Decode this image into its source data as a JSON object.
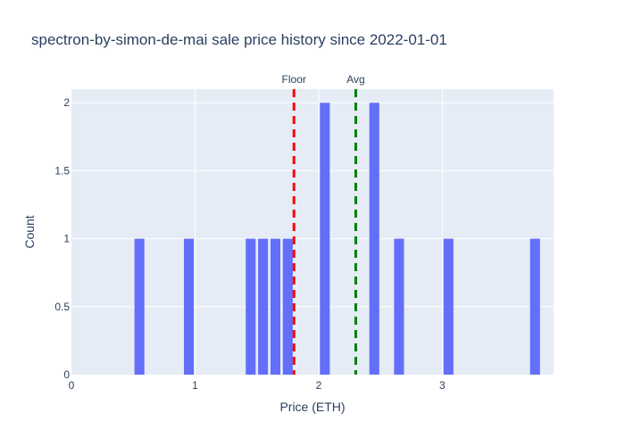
{
  "chart_data": {
    "type": "bar",
    "title": "spectron-by-simon-de-mai sale price history since 2022-01-01",
    "xlabel": "Price (ETH)",
    "ylabel": "Count",
    "xlim": [
      0,
      3.9
    ],
    "ylim": [
      0,
      2.1
    ],
    "bin_width": 0.1,
    "x_ticks": [
      {
        "value": 0,
        "label": "0"
      },
      {
        "value": 1,
        "label": "1"
      },
      {
        "value": 2,
        "label": "2"
      },
      {
        "value": 3,
        "label": "3"
      }
    ],
    "y_ticks": [
      {
        "value": 0,
        "label": "0"
      },
      {
        "value": 0.5,
        "label": "0.5"
      },
      {
        "value": 1,
        "label": "1"
      },
      {
        "value": 1.5,
        "label": "1.5"
      },
      {
        "value": 2,
        "label": "2"
      }
    ],
    "bars": [
      {
        "x": 0.55,
        "count": 1
      },
      {
        "x": 0.95,
        "count": 1
      },
      {
        "x": 1.45,
        "count": 1
      },
      {
        "x": 1.55,
        "count": 1
      },
      {
        "x": 1.65,
        "count": 1
      },
      {
        "x": 1.75,
        "count": 1
      },
      {
        "x": 2.05,
        "count": 2
      },
      {
        "x": 2.45,
        "count": 2
      },
      {
        "x": 2.65,
        "count": 1
      },
      {
        "x": 3.05,
        "count": 1
      },
      {
        "x": 3.75,
        "count": 1
      }
    ],
    "reference_lines": [
      {
        "label": "Floor",
        "x": 1.8,
        "color": "#ff0000"
      },
      {
        "label": "Avg",
        "x": 2.3,
        "color": "#008000"
      }
    ],
    "bar_color": "#636efa",
    "plot_background": "#e5ecf6",
    "grid": true
  }
}
